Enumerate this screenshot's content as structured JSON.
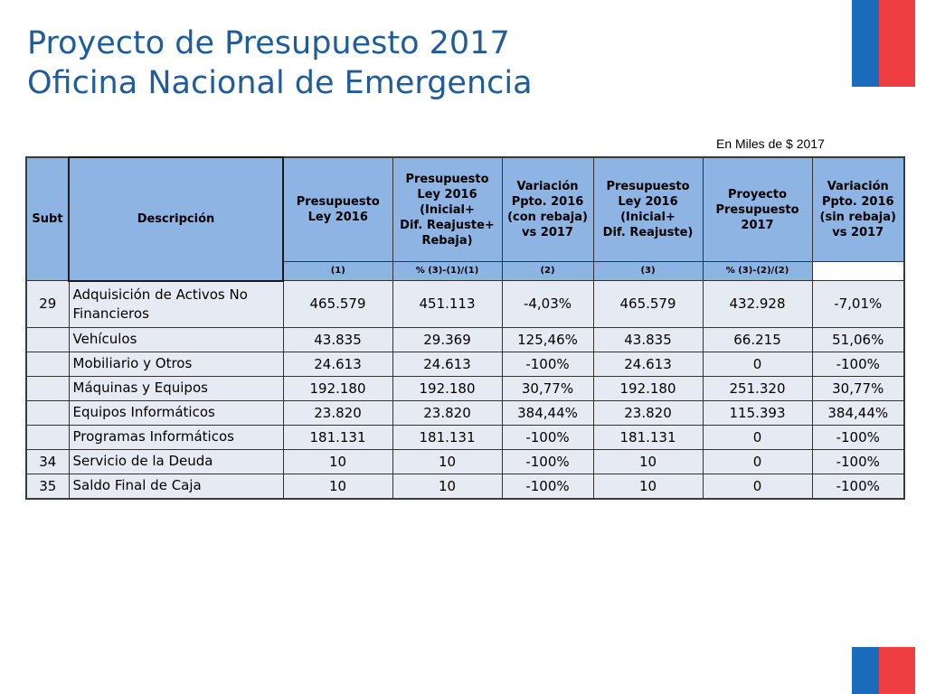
{
  "title": {
    "line1": "Proyecto de Presupuesto 2017",
    "line2": "Oficina Nacional de Emergencia"
  },
  "units_note": "En Miles de $ 2017",
  "table": {
    "headers": [
      {
        "key": "subt",
        "lines": [
          "Subt"
        ]
      },
      {
        "key": "descripcion",
        "lines": [
          "Descripción"
        ]
      },
      {
        "key": "pres_ley_2016",
        "lines": [
          "Presupuesto",
          "Ley 2016"
        ]
      },
      {
        "key": "pres_ley_2016_inicial_reajuste_rebaja",
        "lines": [
          "Presupuesto",
          "Ley 2016",
          "(Inicial+",
          "Dif. Reajuste+",
          "Rebaja)"
        ]
      },
      {
        "key": "var_con_rebaja",
        "lines": [
          "Variación",
          "Ppto. 2016",
          "(con rebaja)",
          "vs 2017"
        ]
      },
      {
        "key": "pres_ley_2016_inicial_reajuste",
        "lines": [
          "Presupuesto",
          "Ley 2016",
          "(Inicial+",
          "Dif. Reajuste)"
        ]
      },
      {
        "key": "proyecto_2017",
        "lines": [
          "Proyecto",
          "Presupuesto",
          "2017"
        ]
      },
      {
        "key": "var_sin_rebaja",
        "lines": [
          "Variación",
          "Ppto. 2016",
          "(sin rebaja)",
          "vs 2017"
        ]
      }
    ],
    "subheaders": [
      "(1)",
      "% (3)-(1)/(1)",
      "(2)",
      "(3)",
      "% (3)-(2)/(2)"
    ],
    "rows": [
      {
        "subt": "29",
        "descripcion": "Adquisición de Activos No Financieros",
        "c1": "465.579",
        "c2": "451.113",
        "c3": "-4,03%",
        "c4": "465.579",
        "c5": "432.928",
        "c6": "-7,01%"
      },
      {
        "subt": "",
        "descripcion": "Vehículos",
        "c1": "43.835",
        "c2": "29.369",
        "c3": "125,46%",
        "c4": "43.835",
        "c5": "66.215",
        "c6": "51,06%"
      },
      {
        "subt": "",
        "descripcion": "Mobiliario  y Otros",
        "c1": "24.613",
        "c2": "24.613",
        "c3": "-100%",
        "c4": "24.613",
        "c5": "0",
        "c6": "-100%"
      },
      {
        "subt": "",
        "descripcion": "Máquinas y Equipos",
        "c1": "192.180",
        "c2": "192.180",
        "c3": "30,77%",
        "c4": "192.180",
        "c5": "251.320",
        "c6": "30,77%"
      },
      {
        "subt": "",
        "descripcion": "Equipos Informáticos",
        "c1": "23.820",
        "c2": "23.820",
        "c3": "384,44%",
        "c4": "23.820",
        "c5": "115.393",
        "c6": "384,44%"
      },
      {
        "subt": "",
        "descripcion": "Programas Informáticos",
        "c1": "181.131",
        "c2": "181.131",
        "c3": "-100%",
        "c4": "181.131",
        "c5": "0",
        "c6": "-100%"
      },
      {
        "subt": "34",
        "descripcion": "Servicio de la Deuda",
        "c1": "10",
        "c2": "10",
        "c3": "-100%",
        "c4": "10",
        "c5": "0",
        "c6": "-100%"
      },
      {
        "subt": "35",
        "descripcion": "Saldo Final de Caja",
        "c1": "10",
        "c2": "10",
        "c3": "-100%",
        "c4": "10",
        "c5": "0",
        "c6": "-100%"
      }
    ]
  },
  "colors": {
    "title": "#1f5c99",
    "header_bg": "#8eb4e3",
    "row_bg": "#e6ebf3",
    "flag_blue": "#1b6bbd",
    "flag_red": "#ef3e42"
  }
}
